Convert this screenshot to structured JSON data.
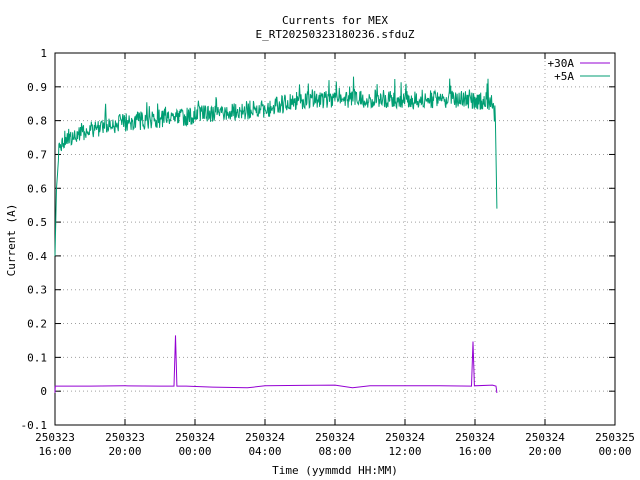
{
  "chart_data": {
    "type": "line",
    "title": "Currents for MEX",
    "subtitle": "E_RT20250323180236.sfduZ",
    "xlabel": "Time (yymmdd HH:MM)",
    "ylabel": "Current (A)",
    "ylim": [
      -0.1,
      1.0
    ],
    "yticks": [
      "-0.1",
      "0",
      "0.1",
      "0.2",
      "0.3",
      "0.4",
      "0.5",
      "0.6",
      "0.7",
      "0.8",
      "0.9",
      "1"
    ],
    "xlim_hours": [
      -4,
      28
    ],
    "xticks": [
      {
        "date": "250323",
        "time": "16:00"
      },
      {
        "date": "250323",
        "time": "20:00"
      },
      {
        "date": "250324",
        "time": "00:00"
      },
      {
        "date": "250324",
        "time": "04:00"
      },
      {
        "date": "250324",
        "time": "08:00"
      },
      {
        "date": "250324",
        "time": "12:00"
      },
      {
        "date": "250324",
        "time": "16:00"
      },
      {
        "date": "250324",
        "time": "20:00"
      },
      {
        "date": "250325",
        "time": "00:00"
      }
    ],
    "grid": true,
    "legend_position": "top-right",
    "series": [
      {
        "name": "+30A",
        "color": "#9400d3",
        "x": [
          "250323 20:00",
          "250323 20:01",
          "250323 22:00",
          "250324 00:00",
          "250324 02:00",
          "250324 02:48",
          "250324 02:53",
          "250324 02:58",
          "250324 03:30",
          "250324 05:00",
          "250324 07:00",
          "250324 08:00",
          "250324 10:00",
          "250324 12:00",
          "250324 13:00",
          "250324 14:00",
          "250324 16:00",
          "250324 18:00",
          "250324 19:48",
          "250324 19:53",
          "250324 19:58",
          "250324 21:00",
          "250324 21:12",
          "250324 21:15"
        ],
        "values": [
          -0.005,
          0.015,
          0.015,
          0.016,
          0.015,
          0.015,
          0.165,
          0.015,
          0.015,
          0.012,
          0.01,
          0.016,
          0.017,
          0.018,
          0.01,
          0.016,
          0.016,
          0.016,
          0.015,
          0.147,
          0.016,
          0.018,
          0.015,
          -0.005
        ]
      },
      {
        "name": "+5A",
        "color": "#009e73",
        "x": [
          "250323 20:00",
          "250323 20:05",
          "250323 20:15",
          "250323 20:30",
          "250323 21:00",
          "250323 22:00",
          "250324 00:00",
          "250324 02:00",
          "250324 04:00",
          "250324 06:00",
          "250324 08:00",
          "250324 10:00",
          "250324 12:00",
          "250324 14:00",
          "250324 16:00",
          "250324 18:00",
          "250324 20:00",
          "250324 21:00",
          "250324 21:10",
          "250324 21:15"
        ],
        "values": [
          0.4,
          0.6,
          0.72,
          0.74,
          0.75,
          0.77,
          0.79,
          0.8,
          0.81,
          0.82,
          0.83,
          0.855,
          0.86,
          0.86,
          0.855,
          0.855,
          0.855,
          0.85,
          0.8,
          0.54
        ]
      }
    ]
  }
}
